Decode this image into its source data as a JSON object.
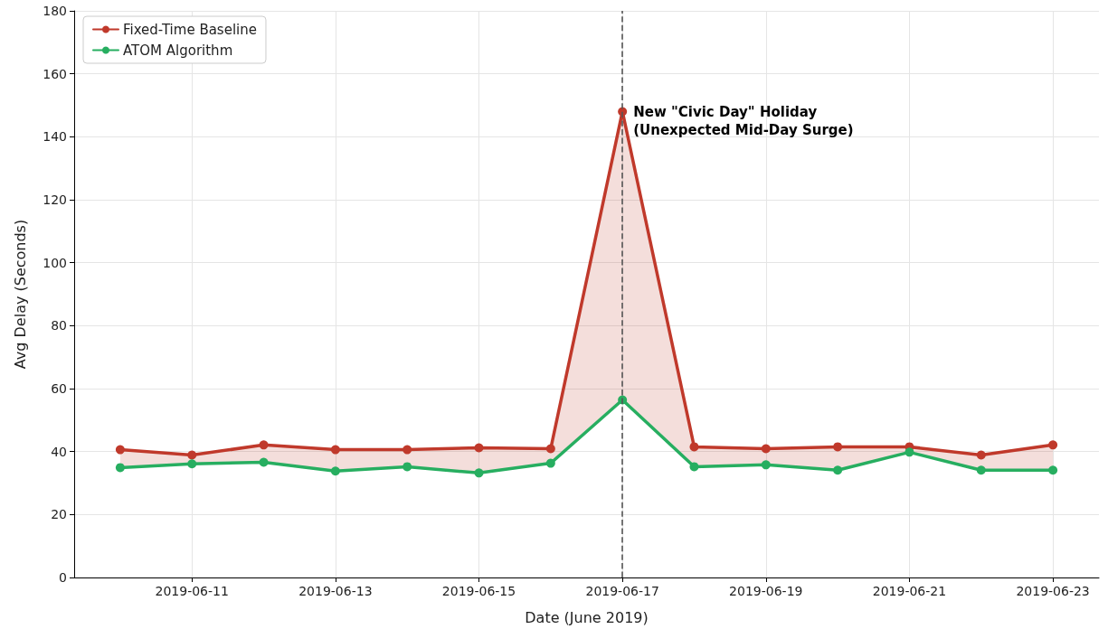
{
  "chart_data": {
    "type": "line",
    "xlabel": "Date (June 2019)",
    "ylabel": "Avg Delay (Seconds)",
    "x": [
      "2019-06-10",
      "2019-06-11",
      "2019-06-12",
      "2019-06-13",
      "2019-06-14",
      "2019-06-15",
      "2019-06-16",
      "2019-06-17",
      "2019-06-18",
      "2019-06-19",
      "2019-06-20",
      "2019-06-21",
      "2019-06-22",
      "2019-06-23"
    ],
    "series": [
      {
        "name": "Fixed-Time Baseline",
        "color": "#c0392b",
        "values": [
          40.6,
          38.9,
          42.1,
          40.6,
          40.6,
          41.2,
          40.9,
          148,
          41.5,
          40.9,
          41.5,
          41.5,
          38.9,
          42.1
        ],
        "lower": [
          34.9,
          36.1,
          36.6,
          33.8,
          35.2,
          33.2,
          36.3,
          56.4,
          35.2,
          35.8,
          34.1,
          39.8,
          34.1,
          34.1
        ],
        "upper": [
          40.6,
          38.9,
          42.1,
          40.6,
          40.6,
          41.2,
          40.9,
          148,
          41.5,
          40.9,
          41.5,
          41.5,
          38.9,
          42.1
        ]
      },
      {
        "name": "ATOM Algorithm",
        "color": "#27ae60",
        "values": [
          34.9,
          36.1,
          36.6,
          33.8,
          35.2,
          33.2,
          36.3,
          56.4,
          35.2,
          35.8,
          34.1,
          39.8,
          34.1,
          34.1
        ]
      }
    ],
    "xlim": [
      "2019-06-09T08:36",
      "2019-06-23T15:24"
    ],
    "xticks": [
      "2019-06-11",
      "2019-06-13",
      "2019-06-15",
      "2019-06-17",
      "2019-06-19",
      "2019-06-21",
      "2019-06-23"
    ],
    "ylim": [
      0,
      180
    ],
    "yticks": [
      0,
      20,
      40,
      60,
      80,
      100,
      120,
      140,
      160,
      180
    ],
    "ref_lines": [
      {
        "axis": "x",
        "value": "2019-06-17",
        "color": "#555555",
        "line_style": "dashed"
      }
    ],
    "annotations": [
      {
        "text": "New \"Civic Day\" Holiday\n(Unexpected Mid-Day Surge)",
        "x": "2019-06-17",
        "y": 148
      }
    ],
    "grid": true,
    "legend": "top left",
    "marker": "circle",
    "line_style": "solid"
  }
}
